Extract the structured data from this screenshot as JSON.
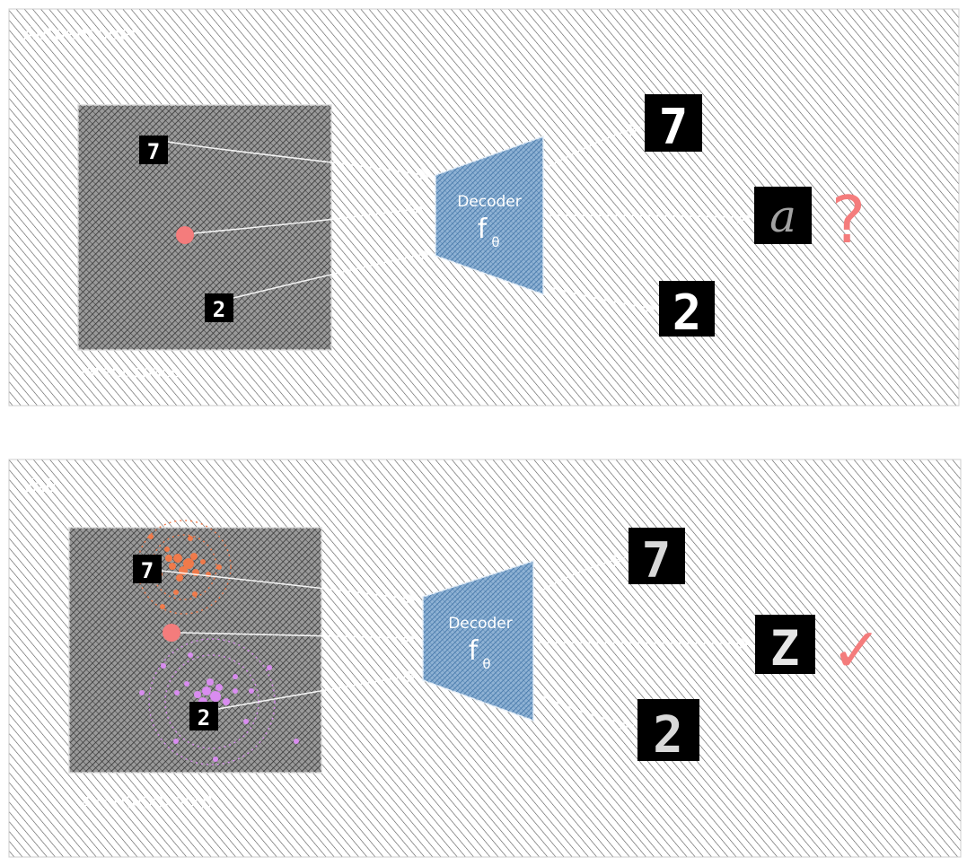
{
  "panels": {
    "autoencoder": {
      "title": "Autoencoder",
      "latent_label": "latent space",
      "decoder_label": "Decoder",
      "decoder_symbol": "f",
      "decoder_subscript": "θ",
      "latent_digits": [
        "7",
        "2"
      ],
      "output_digits": [
        "7",
        "a",
        "2"
      ],
      "result_mark": "?"
    },
    "vae": {
      "title": "VAE",
      "latent_label": "z ~ N(μ(x), σ(x))",
      "decoder_label": "Decoder",
      "decoder_symbol": "f",
      "decoder_subscript": "θ",
      "latent_digits": [
        "7",
        "2"
      ],
      "output_digits": [
        "7",
        "Z",
        "2"
      ],
      "result_mark": "✓"
    }
  },
  "colors": {
    "panel_hatch": "#444444",
    "latent_box": "#3a3a3a",
    "decoder_fill": "#4a7db0",
    "sample_point": "#f47c7c",
    "cluster_seven": "#f07a4a",
    "cluster_two": "#d98cf0",
    "question_mark": "#f47c7c",
    "check_mark": "#f47c7c"
  }
}
